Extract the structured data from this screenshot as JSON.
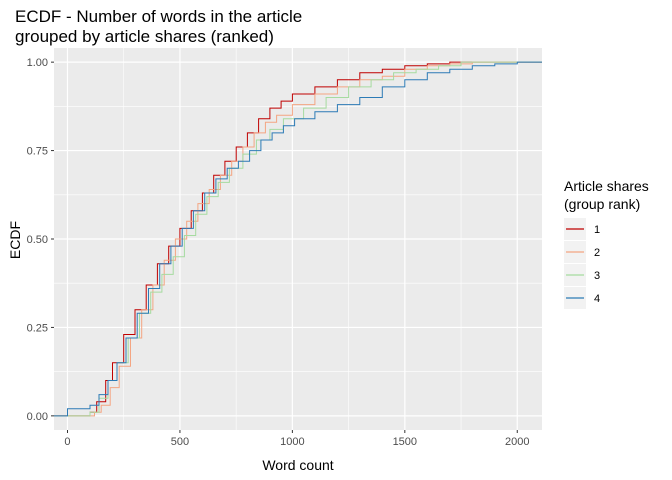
{
  "chart_data": {
    "type": "line",
    "step": true,
    "title_lines": [
      "ECDF - Number of words in the article",
      "grouped by article shares (ranked)"
    ],
    "xlabel": "Word count",
    "ylabel": "ECDF",
    "xlim": [
      -60,
      2110
    ],
    "ylim": [
      -0.04,
      1.04
    ],
    "x_ticks": [
      0,
      500,
      1000,
      1500,
      2000
    ],
    "y_ticks": [
      0.0,
      0.25,
      0.5,
      0.75,
      1.0
    ],
    "y_tick_labels": [
      "0.00",
      "0.25",
      "0.50",
      "0.75",
      "1.00"
    ],
    "grid": true,
    "legend": {
      "title_lines": [
        "Article shares",
        "(group rank)"
      ],
      "placement": "right"
    },
    "series": [
      {
        "name": "1",
        "color": "#c00000",
        "points": [
          [
            -60,
            0
          ],
          [
            80,
            0
          ],
          [
            100,
            0.01
          ],
          [
            130,
            0.04
          ],
          [
            170,
            0.1
          ],
          [
            200,
            0.15
          ],
          [
            250,
            0.23
          ],
          [
            300,
            0.3
          ],
          [
            350,
            0.37
          ],
          [
            400,
            0.43
          ],
          [
            450,
            0.48
          ],
          [
            500,
            0.53
          ],
          [
            550,
            0.58
          ],
          [
            600,
            0.63
          ],
          [
            650,
            0.68
          ],
          [
            700,
            0.72
          ],
          [
            750,
            0.76
          ],
          [
            800,
            0.8
          ],
          [
            850,
            0.84
          ],
          [
            900,
            0.87
          ],
          [
            950,
            0.89
          ],
          [
            1000,
            0.91
          ],
          [
            1100,
            0.93
          ],
          [
            1200,
            0.95
          ],
          [
            1300,
            0.97
          ],
          [
            1400,
            0.98
          ],
          [
            1500,
            0.99
          ],
          [
            1600,
            0.995
          ],
          [
            1700,
            1.0
          ],
          [
            2110,
            1.0
          ]
        ]
      },
      {
        "name": "2",
        "color": "#f4a582",
        "points": [
          [
            -60,
            0
          ],
          [
            80,
            0
          ],
          [
            120,
            0.01
          ],
          [
            150,
            0.03
          ],
          [
            190,
            0.08
          ],
          [
            230,
            0.14
          ],
          [
            280,
            0.22
          ],
          [
            330,
            0.3
          ],
          [
            380,
            0.37
          ],
          [
            430,
            0.44
          ],
          [
            480,
            0.5
          ],
          [
            530,
            0.55
          ],
          [
            580,
            0.6
          ],
          [
            630,
            0.64
          ],
          [
            680,
            0.68
          ],
          [
            730,
            0.72
          ],
          [
            780,
            0.76
          ],
          [
            830,
            0.8
          ],
          [
            880,
            0.83
          ],
          [
            930,
            0.85
          ],
          [
            1000,
            0.88
          ],
          [
            1100,
            0.91
          ],
          [
            1200,
            0.93
          ],
          [
            1300,
            0.95
          ],
          [
            1400,
            0.96
          ],
          [
            1500,
            0.98
          ],
          [
            1600,
            0.99
          ],
          [
            1700,
            0.995
          ],
          [
            1800,
            1.0
          ],
          [
            2110,
            1.0
          ]
        ]
      },
      {
        "name": "3",
        "color": "#a6dba0",
        "points": [
          [
            -60,
            0
          ],
          [
            80,
            0
          ],
          [
            100,
            0.01
          ],
          [
            140,
            0.05
          ],
          [
            180,
            0.1
          ],
          [
            220,
            0.15
          ],
          [
            270,
            0.22
          ],
          [
            320,
            0.29
          ],
          [
            370,
            0.35
          ],
          [
            420,
            0.4
          ],
          [
            470,
            0.45
          ],
          [
            520,
            0.51
          ],
          [
            570,
            0.57
          ],
          [
            620,
            0.62
          ],
          [
            670,
            0.66
          ],
          [
            720,
            0.7
          ],
          [
            780,
            0.74
          ],
          [
            840,
            0.78
          ],
          [
            900,
            0.81
          ],
          [
            960,
            0.84
          ],
          [
            1050,
            0.87
          ],
          [
            1150,
            0.9
          ],
          [
            1250,
            0.93
          ],
          [
            1350,
            0.95
          ],
          [
            1450,
            0.97
          ],
          [
            1550,
            0.98
          ],
          [
            1650,
            0.99
          ],
          [
            1750,
            1.0
          ],
          [
            2110,
            1.0
          ]
        ]
      },
      {
        "name": "4",
        "color": "#2c7bb6",
        "points": [
          [
            -60,
            0
          ],
          [
            0,
            0
          ],
          [
            0,
            0.02
          ],
          [
            60,
            0.02
          ],
          [
            100,
            0.03
          ],
          [
            140,
            0.06
          ],
          [
            180,
            0.1
          ],
          [
            220,
            0.15
          ],
          [
            260,
            0.22
          ],
          [
            310,
            0.29
          ],
          [
            360,
            0.36
          ],
          [
            410,
            0.43
          ],
          [
            460,
            0.48
          ],
          [
            510,
            0.53
          ],
          [
            560,
            0.58
          ],
          [
            610,
            0.63
          ],
          [
            660,
            0.67
          ],
          [
            710,
            0.7
          ],
          [
            760,
            0.72
          ],
          [
            810,
            0.75
          ],
          [
            860,
            0.78
          ],
          [
            910,
            0.8
          ],
          [
            960,
            0.82
          ],
          [
            1010,
            0.84
          ],
          [
            1100,
            0.86
          ],
          [
            1200,
            0.88
          ],
          [
            1300,
            0.9
          ],
          [
            1400,
            0.93
          ],
          [
            1500,
            0.95
          ],
          [
            1600,
            0.97
          ],
          [
            1700,
            0.98
          ],
          [
            1800,
            0.99
          ],
          [
            1900,
            0.995
          ],
          [
            2000,
            1.0
          ],
          [
            2110,
            1.0
          ]
        ]
      }
    ]
  }
}
